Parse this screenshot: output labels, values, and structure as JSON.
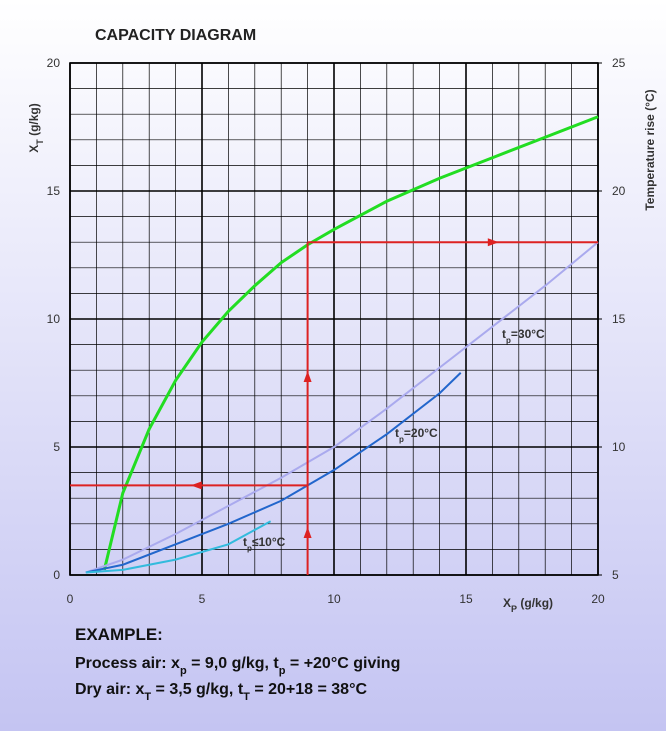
{
  "chart_data": {
    "type": "line",
    "title": "CAPACITY DIAGRAM",
    "xlabel": [
      "X",
      "P",
      " (g/kg)"
    ],
    "ylabel": [
      "X",
      "T",
      " (g/kg)"
    ],
    "y2label": "Temperature rise (°C)",
    "xlim": [
      0,
      20
    ],
    "xticks": [
      0,
      5,
      10,
      15,
      20
    ],
    "ylim": [
      0,
      20
    ],
    "yticks": [
      0,
      5,
      10,
      15,
      20
    ],
    "y2lim": [
      5,
      25
    ],
    "y2ticks": [
      5,
      10,
      15,
      20,
      25
    ],
    "grid": true,
    "grid_minor_step": 1,
    "series": [
      {
        "axis": "y2",
        "color": "#22dd22",
        "x": [
          1.3,
          2,
          3,
          4,
          5,
          6,
          7,
          8,
          9,
          10,
          12,
          14,
          16,
          18,
          20
        ],
        "values": [
          5.2,
          8.2,
          10.7,
          12.6,
          14.1,
          15.3,
          16.3,
          17.2,
          17.9,
          18.5,
          19.6,
          20.5,
          21.3,
          22.1,
          22.9
        ]
      },
      {
        "label": [
          "t",
          "p",
          "=30°C"
        ],
        "color": "#aaaaee",
        "x": [
          0.6,
          2,
          4,
          6,
          8,
          10,
          12,
          14,
          16,
          18,
          20
        ],
        "values": [
          0.1,
          0.6,
          1.6,
          2.7,
          3.8,
          5.0,
          6.5,
          8.1,
          9.7,
          11.3,
          13.0
        ]
      },
      {
        "label": [
          "t",
          "p",
          "=20°C"
        ],
        "color": "#2266cc",
        "x": [
          0.6,
          2,
          4,
          6,
          8,
          9,
          10,
          12,
          14,
          14.8
        ],
        "values": [
          0.1,
          0.4,
          1.2,
          2.0,
          2.9,
          3.5,
          4.1,
          5.5,
          7.1,
          7.9
        ]
      },
      {
        "label": [
          "t",
          "p",
          "≤10°C"
        ],
        "color": "#33bbdd",
        "x": [
          0.6,
          2,
          4,
          6,
          7.6
        ],
        "values": [
          0.1,
          0.2,
          0.6,
          1.2,
          2.1
        ]
      }
    ],
    "example": {
      "x": 9,
      "y": 3.5,
      "y2": 18,
      "color": "#dd2222"
    },
    "example_text": {
      "heading": "EXAMPLE:",
      "lines": [
        [
          "Process air: x",
          "p",
          " = 9,0 g/kg, t",
          "p",
          " = +20°C giving"
        ],
        [
          "Dry air: x",
          "T",
          " = 3,5 g/kg, t",
          "T",
          " = 20+18 = 38°C"
        ]
      ]
    }
  }
}
